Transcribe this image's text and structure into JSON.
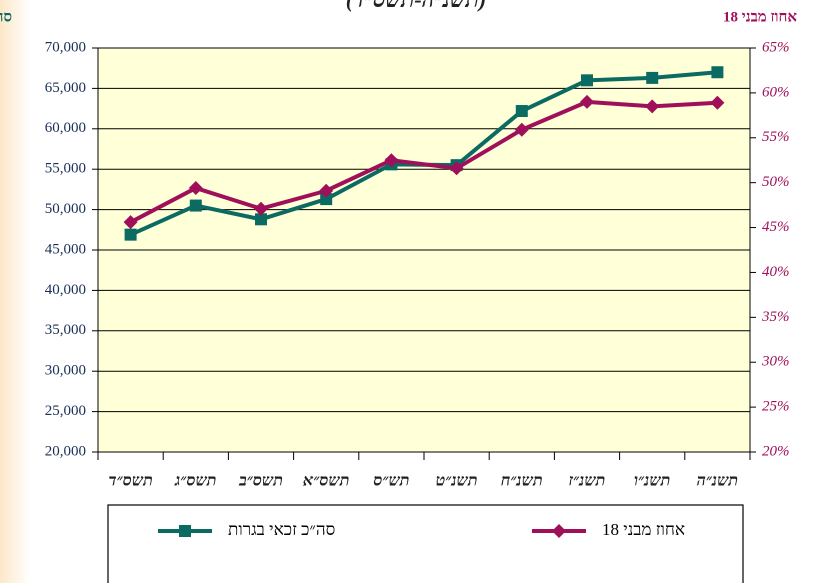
{
  "chart_data": {
    "type": "line",
    "title": "(תשנ״ה-תשס״ד)",
    "y_label": "סה״כ זכאי בגרות",
    "y2_label": "אחוז מבני 18",
    "categories": [
      "תשס״ד",
      "תשס״ג",
      "תשס״ב",
      "תשס״א",
      "תש״ס",
      "תשנ״ט",
      "תשנ״ח",
      "תשנ״ז",
      "תשנ״ו",
      "תשנ״ה"
    ],
    "series": [
      {
        "name": "סה״כ זכאי בגרות",
        "color": "#0b6b62",
        "marker": "square",
        "axis": "y",
        "values": [
          46900,
          50500,
          48800,
          51300,
          55600,
          55500,
          62200,
          66000,
          66300,
          67000
        ]
      },
      {
        "name": "אחוז מבני 18",
        "color": "#a0105a",
        "marker": "diamond",
        "axis": "y2",
        "values": [
          45.6,
          49.4,
          47.1,
          49.1,
          52.5,
          51.6,
          55.9,
          59.0,
          58.5,
          58.9
        ]
      }
    ],
    "ylim": [
      20000,
      70000
    ],
    "yticks": [
      {
        "value": 20000,
        "label": "20,000"
      },
      {
        "value": 25000,
        "label": "25,000"
      },
      {
        "value": 30000,
        "label": "30,000"
      },
      {
        "value": 35000,
        "label": "35,000"
      },
      {
        "value": 40000,
        "label": "40,000"
      },
      {
        "value": 45000,
        "label": "45,000"
      },
      {
        "value": 50000,
        "label": "50,000"
      },
      {
        "value": 55000,
        "label": "55,000"
      },
      {
        "value": 60000,
        "label": "60,000"
      },
      {
        "value": 65000,
        "label": "65,000"
      },
      {
        "value": 70000,
        "label": "70,000"
      }
    ],
    "y2lim": [
      20,
      65
    ],
    "y2ticks": [
      {
        "value": 20,
        "label": "20%"
      },
      {
        "value": 25,
        "label": "25%"
      },
      {
        "value": 30,
        "label": "30%"
      },
      {
        "value": 35,
        "label": "35%"
      },
      {
        "value": 40,
        "label": "40%"
      },
      {
        "value": 45,
        "label": "45%"
      },
      {
        "value": 50,
        "label": "50%"
      },
      {
        "value": 55,
        "label": "55%"
      },
      {
        "value": 60,
        "label": "60%"
      },
      {
        "value": 65,
        "label": "65%"
      }
    ],
    "grid": true,
    "plot_background": "#ffffd8",
    "legend": "bottom"
  }
}
